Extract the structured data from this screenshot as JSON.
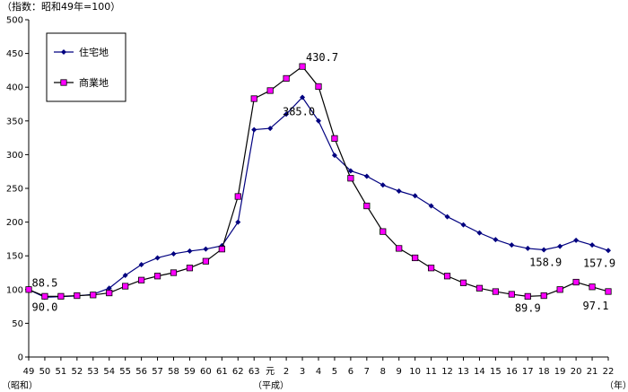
{
  "chart_data": {
    "type": "line",
    "unit_label": "（指数：昭和49年=100）",
    "y_ticks": [
      "0",
      "50",
      "100",
      "150",
      "200",
      "250",
      "300",
      "350",
      "400",
      "450",
      "500"
    ],
    "ylim": [
      0,
      500
    ],
    "categories": [
      "49",
      "50",
      "51",
      "52",
      "53",
      "54",
      "55",
      "56",
      "57",
      "58",
      "59",
      "60",
      "61",
      "62",
      "63",
      "元",
      "2",
      "3",
      "4",
      "5",
      "6",
      "7",
      "8",
      "9",
      "10",
      "11",
      "12",
      "13",
      "14",
      "15",
      "16",
      "17",
      "18",
      "19",
      "20",
      "21",
      "22"
    ],
    "era_labels": {
      "showa": "（昭和）",
      "heisei": "（平成）",
      "year": "（年）"
    },
    "series": [
      {
        "name": "住宅地",
        "color": "#000080",
        "marker": "diamond",
        "values": [
          100,
          88.5,
          89.5,
          90.5,
          93,
          102,
          121,
          137,
          147,
          153,
          157,
          160,
          165,
          200,
          337,
          339,
          360,
          385.0,
          350,
          299,
          276,
          268,
          255,
          246,
          239,
          224,
          208,
          196,
          184,
          174,
          166,
          161,
          158.9,
          164,
          173,
          166,
          157.9
        ]
      },
      {
        "name": "商業地",
        "color": "#000000",
        "marker_fill": "#ff00ff",
        "marker": "square",
        "values": [
          100,
          90.0,
          90,
          91,
          92,
          95,
          105,
          114,
          120,
          125,
          132,
          142,
          160,
          238,
          383,
          395,
          413,
          430.7,
          401,
          324,
          265,
          224,
          186,
          161,
          147,
          132,
          120,
          110,
          102,
          97,
          93,
          89.9,
          91,
          100,
          111,
          104,
          97.1
        ]
      }
    ],
    "annotations": [
      {
        "text": "88.5",
        "series": 0,
        "index": 1
      },
      {
        "text": "90.0",
        "series": 1,
        "index": 1
      },
      {
        "text": "385.0",
        "series": 0,
        "index": 17
      },
      {
        "text": "430.7",
        "series": 1,
        "index": 17
      },
      {
        "text": "158.9",
        "series": 0,
        "index": 32
      },
      {
        "text": "157.9",
        "series": 0,
        "index": 36
      },
      {
        "text": "89.9",
        "series": 1,
        "index": 31
      },
      {
        "text": "97.1",
        "series": 1,
        "index": 36
      }
    ],
    "legend_position": "top-left",
    "grid": false
  }
}
